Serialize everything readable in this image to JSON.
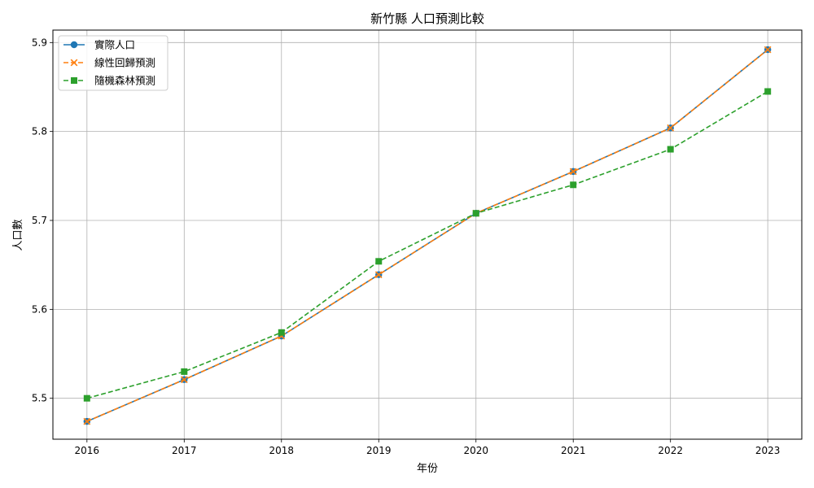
{
  "chart_data": {
    "type": "line",
    "title": "新竹縣 人口預測比較",
    "xlabel": "年份",
    "ylabel": "人口數",
    "x": [
      "2016",
      "2017",
      "2018",
      "2019",
      "2020",
      "2021",
      "2022",
      "2023"
    ],
    "xlim": [
      2015.65,
      2023.35
    ],
    "ylim": [
      5.454,
      5.914
    ],
    "yticks": [
      "5.5",
      "5.6",
      "5.7",
      "5.8",
      "5.9"
    ],
    "grid": true,
    "legend_position": "top-left",
    "series": [
      {
        "name": "實際人口",
        "values": [
          5.474,
          5.521,
          5.57,
          5.639,
          5.708,
          5.755,
          5.804,
          5.892
        ],
        "color": "#1f77b4",
        "line_style": "solid",
        "marker": "circle"
      },
      {
        "name": "線性回歸預測",
        "values": [
          5.474,
          5.521,
          5.57,
          5.639,
          5.708,
          5.755,
          5.804,
          5.892
        ],
        "color": "#ff7f0e",
        "line_style": "dashed",
        "marker": "x"
      },
      {
        "name": "隨機森林預測",
        "values": [
          5.5,
          5.53,
          5.574,
          5.654,
          5.708,
          5.74,
          5.78,
          5.845
        ],
        "color": "#2ca02c",
        "line_style": "dashed",
        "marker": "square"
      }
    ]
  }
}
